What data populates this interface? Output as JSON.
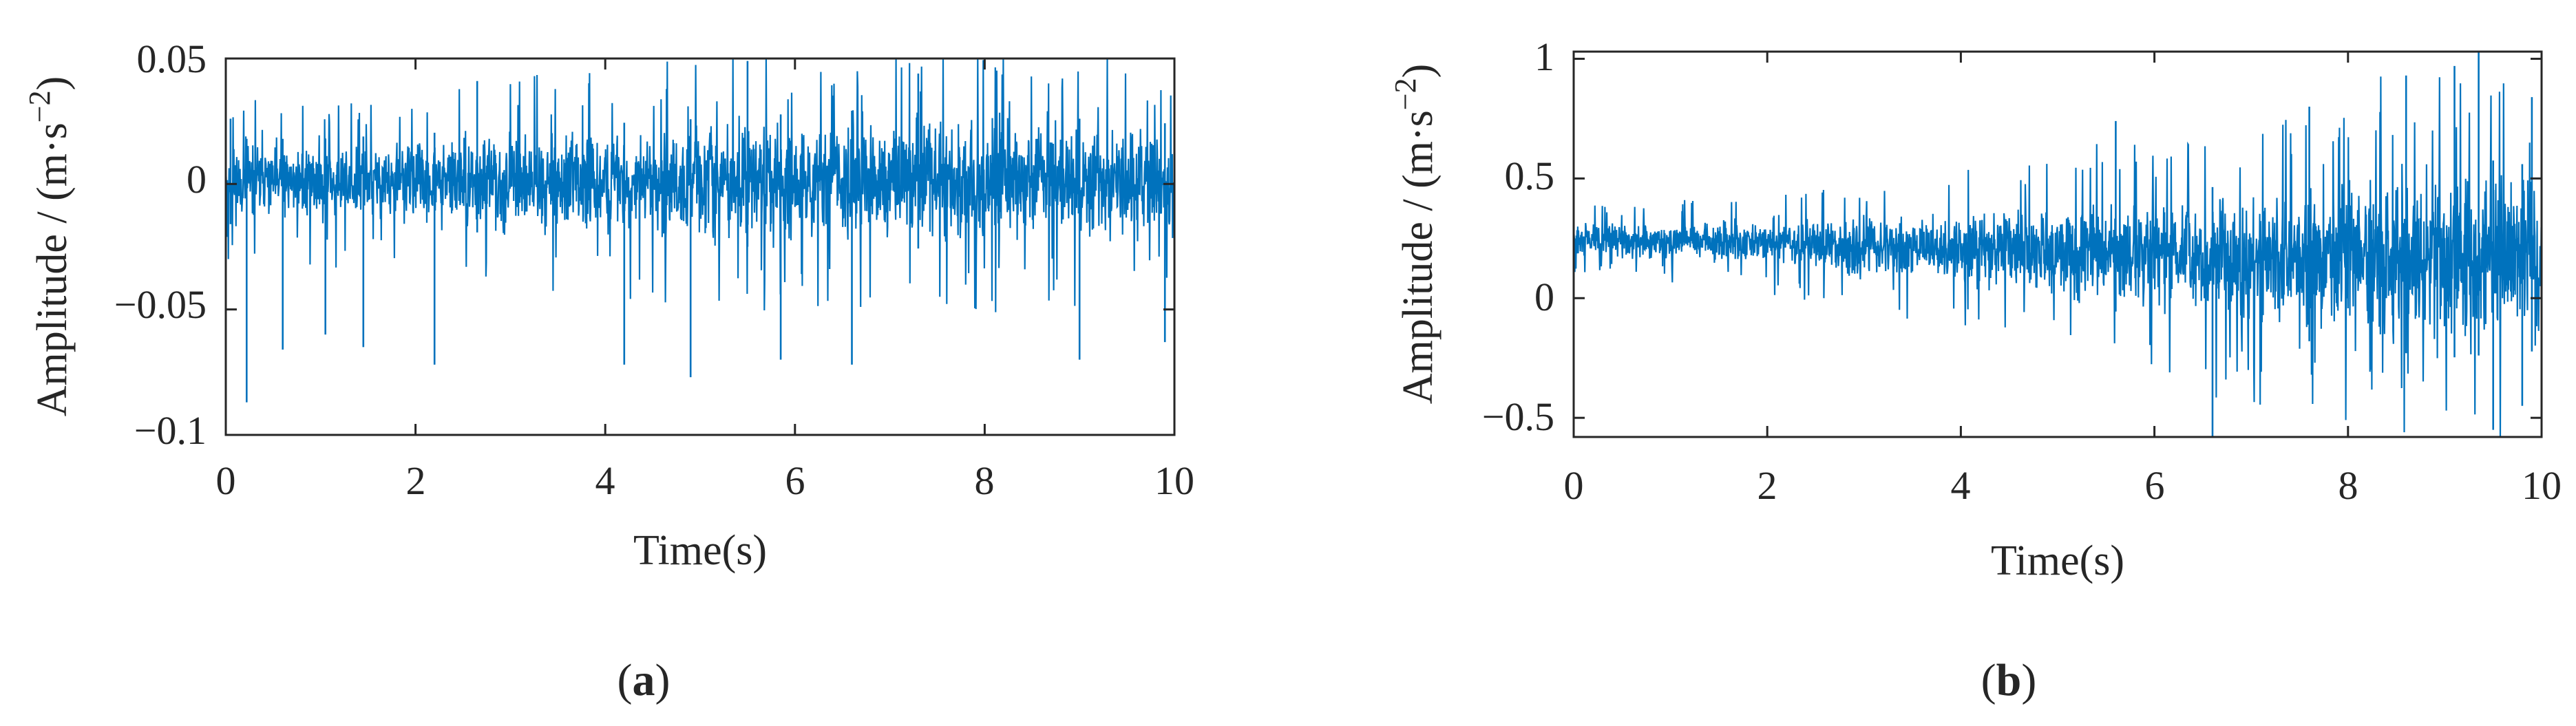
{
  "figure": {
    "panel_labels": [
      {
        "open": "(",
        "letter": "a",
        "close": ")"
      },
      {
        "open": "(",
        "letter": "b",
        "close": ")"
      }
    ]
  },
  "colors": {
    "signal": "#0072BD",
    "axis": "#262626",
    "background": "#ffffff"
  },
  "chart_data": [
    {
      "type": "line",
      "title": "",
      "xlabel": "Time(s)",
      "ylabel": "Amplitude / (m·s",
      "ylabel_superscript": "−2",
      "ylabel_close": ")",
      "xlim": [
        0,
        10
      ],
      "ylim": [
        -0.1,
        0.05
      ],
      "xticks": [
        0,
        2,
        4,
        6,
        8,
        10
      ],
      "xtick_labels": [
        "0",
        "2",
        "4",
        "6",
        "8",
        "10"
      ],
      "yticks": [
        -0.1,
        -0.05,
        0,
        0.05
      ],
      "ytick_labels": [
        "−0.1",
        "−0.05",
        "0",
        "0.05"
      ],
      "grid": false,
      "signal_envelope": {
        "time": [
          0,
          1,
          2,
          3,
          4,
          5,
          6,
          7,
          8,
          9,
          10
        ],
        "upper": [
          0.018,
          0.018,
          0.02,
          0.022,
          0.024,
          0.026,
          0.028,
          0.03,
          0.028,
          0.026,
          0.024
        ],
        "lower": [
          -0.016,
          -0.016,
          -0.018,
          -0.02,
          -0.022,
          -0.024,
          -0.026,
          -0.026,
          -0.025,
          -0.024,
          -0.022
        ]
      },
      "peaks": [
        {
          "t": 0.05,
          "v": 0.026
        },
        {
          "t": 0.22,
          "v": -0.087
        },
        {
          "t": 0.6,
          "v": -0.066
        },
        {
          "t": 1.05,
          "v": -0.06
        },
        {
          "t": 1.45,
          "v": -0.065
        },
        {
          "t": 2.65,
          "v": 0.041
        },
        {
          "t": 2.2,
          "v": -0.072
        },
        {
          "t": 4.2,
          "v": -0.072
        },
        {
          "t": 4.9,
          "v": -0.077
        },
        {
          "t": 5.5,
          "v": 0.049
        },
        {
          "t": 5.85,
          "v": -0.07
        },
        {
          "t": 6.6,
          "v": -0.072
        },
        {
          "t": 7.3,
          "v": 0.044
        },
        {
          "t": 9.0,
          "v": -0.07
        },
        {
          "t": 9.9,
          "v": -0.063
        }
      ]
    },
    {
      "type": "line",
      "title": "",
      "xlabel": "Time(s)",
      "ylabel": "Amplitude / (m·s",
      "ylabel_superscript": "−2",
      "ylabel_close": ")",
      "xlim": [
        0,
        10
      ],
      "ylim": [
        -0.58,
        1.03
      ],
      "xticks": [
        0,
        2,
        4,
        6,
        8,
        10
      ],
      "xtick_labels": [
        "0",
        "2",
        "4",
        "6",
        "8",
        "10"
      ],
      "yticks": [
        -0.5,
        0,
        0.5,
        1
      ],
      "ytick_labels": [
        "−0.5",
        "0",
        "0.5",
        "1"
      ],
      "grid": false,
      "signal_envelope": {
        "time": [
          0,
          1,
          2,
          3,
          4,
          5,
          6,
          7,
          8,
          9,
          10
        ],
        "upper": [
          0.32,
          0.33,
          0.34,
          0.36,
          0.38,
          0.4,
          0.44,
          0.48,
          0.55,
          0.6,
          0.55
        ],
        "lower": [
          0.17,
          0.15,
          0.12,
          0.08,
          0.03,
          -0.02,
          -0.08,
          -0.15,
          -0.2,
          -0.25,
          -0.22
        ]
      },
      "peaks": [
        {
          "t": 5.6,
          "v": 0.74
        },
        {
          "t": 6.6,
          "v": -0.58
        },
        {
          "t": 7.6,
          "v": 0.8
        },
        {
          "t": 8.6,
          "v": 0.93
        },
        {
          "t": 9.1,
          "v": 0.97
        },
        {
          "t": 9.35,
          "v": 1.03
        },
        {
          "t": 9.5,
          "v": -0.55
        },
        {
          "t": 9.9,
          "v": 0.84
        },
        {
          "t": 9.8,
          "v": -0.45
        }
      ]
    }
  ]
}
